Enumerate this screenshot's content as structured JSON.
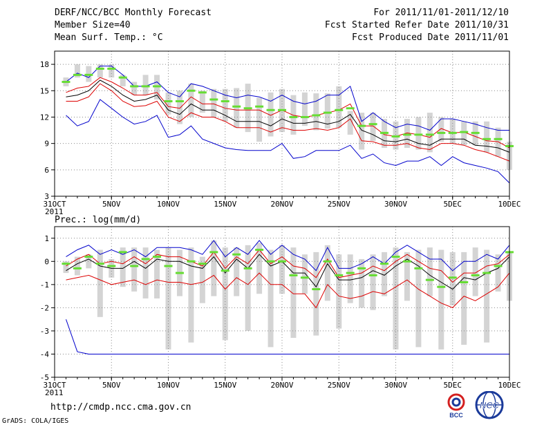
{
  "header": {
    "title": "DERF/NCC/BCC Monthly Forecast",
    "member_size": "Member Size=40",
    "variable": "Mean Surf. Temp.: °C",
    "period": "For 2011/11/01-2011/12/10",
    "start_date": "Fcst Started Refer Date 2011/10/31",
    "produced_date": "Fcst Produced Date 2011/11/01"
  },
  "footer": {
    "url": "http://cmdp.ncc.cma.gov.cn",
    "credit": "GrADS: COLA/IGES",
    "logo_bcc": "BCC",
    "logo_ncc": "NCC"
  },
  "colors": {
    "max": "#0000cc",
    "min": "#0000cc",
    "upper": "#dd0000",
    "lower": "#dd0000",
    "mean": "#000000",
    "obs": "#66dd33",
    "box": "#d4d4d4",
    "grid": "#888888"
  },
  "chart_data": [
    {
      "type": "line",
      "title": "Mean Surf. Temp.: °C",
      "x_tick_labels": [
        "31OCT",
        "5NOV",
        "10NOV",
        "15NOV",
        "20NOV",
        "25NOV",
        "30NOV",
        "5DEC",
        "10DEC"
      ],
      "x_tick_days": [
        0,
        5,
        10,
        15,
        20,
        25,
        30,
        35,
        40
      ],
      "x_year_label": "2011",
      "ylim": [
        3,
        19.5
      ],
      "y_ticks": [
        3,
        6,
        9,
        12,
        15,
        18
      ],
      "days": [
        1,
        2,
        3,
        4,
        5,
        6,
        7,
        8,
        9,
        10,
        11,
        12,
        13,
        14,
        15,
        16,
        17,
        18,
        19,
        20,
        21,
        22,
        23,
        24,
        25,
        26,
        27,
        28,
        29,
        30,
        31,
        32,
        33,
        34,
        35,
        36,
        37,
        38,
        39,
        40
      ],
      "series": [
        {
          "name": "ensemble max",
          "values": [
            16,
            17,
            16.5,
            17.8,
            17.8,
            16.8,
            15.5,
            15.5,
            16,
            14.8,
            14.3,
            15.8,
            15.5,
            15,
            14.5,
            14.2,
            14.5,
            14.3,
            13.8,
            14.5,
            13.8,
            13.5,
            13.8,
            14.5,
            14.5,
            15.5,
            11.5,
            12.5,
            11.5,
            10.8,
            11.2,
            11,
            10.5,
            11.8,
            11.8,
            11.5,
            11.2,
            10.8,
            10.5,
            10.5
          ]
        },
        {
          "name": "upper band",
          "values": [
            14.8,
            15.3,
            15.5,
            16.5,
            16,
            15.3,
            14.5,
            14.5,
            14.8,
            13.2,
            13,
            14.3,
            13.5,
            13.5,
            13,
            12.8,
            12.8,
            12.8,
            12.2,
            12.8,
            12.2,
            12,
            12.2,
            12.5,
            12.8,
            13.5,
            11,
            11,
            10,
            9.8,
            10.2,
            10,
            9.7,
            10.7,
            10.2,
            10.3,
            9.8,
            9.3,
            9.2,
            8.5
          ]
        },
        {
          "name": "ensemble mean",
          "values": [
            14.3,
            14.5,
            15,
            16.2,
            15.5,
            14.5,
            13.8,
            14,
            14.5,
            12.8,
            12.3,
            13.5,
            12.8,
            12.8,
            12.2,
            11.5,
            11.5,
            11.5,
            11,
            11.8,
            11.3,
            11.3,
            11.5,
            11.2,
            11.5,
            12.3,
            10.5,
            10,
            9.3,
            9.2,
            9.5,
            9,
            8.8,
            9.5,
            9.5,
            9.5,
            8.8,
            8.7,
            8.5,
            8
          ]
        },
        {
          "name": "lower band",
          "values": [
            13.8,
            13.8,
            14.3,
            15.8,
            15,
            13.8,
            13.2,
            13.3,
            13.8,
            12,
            11.5,
            12.5,
            12,
            12,
            11.5,
            10.8,
            10.8,
            10.8,
            10.3,
            10.8,
            10.5,
            10.5,
            10.7,
            10.5,
            10.8,
            11.8,
            9.3,
            9.2,
            8.8,
            8.8,
            9,
            8.5,
            8.3,
            9,
            9,
            8.8,
            8.3,
            8,
            7.5,
            7
          ]
        },
        {
          "name": "ensemble min",
          "values": [
            12.2,
            11,
            11.5,
            14,
            13,
            12,
            11.2,
            11.5,
            12.2,
            9.7,
            10,
            11,
            9.5,
            9,
            8.5,
            8.3,
            8.2,
            8.2,
            8.2,
            9,
            7.3,
            7.5,
            8.2,
            8.2,
            8.2,
            8.8,
            7.3,
            7.8,
            6.8,
            6.5,
            7,
            7,
            7.5,
            6.5,
            7.5,
            6.8,
            6.5,
            6.2,
            5.8,
            4.5
          ]
        }
      ],
      "observed": {
        "name": "observed (green)",
        "values": [
          16,
          16.8,
          16.8,
          17.5,
          17.5,
          16.5,
          15.5,
          15.5,
          15.5,
          13.8,
          13.8,
          15,
          14.8,
          14,
          13.8,
          13.2,
          13,
          13.2,
          12.8,
          12.8,
          12,
          12,
          12.2,
          12.5,
          12.8,
          13,
          11,
          11.2,
          10.2,
          9.8,
          10,
          10,
          10,
          10.2,
          10.2,
          10.3,
          10.2,
          9.5,
          9.5,
          8.7
        ]
      },
      "spread_boxes": {
        "name": "member spread",
        "low": [
          15.5,
          16.5,
          16,
          16.5,
          16.5,
          15.5,
          14.5,
          14.5,
          14,
          12.3,
          11.2,
          12,
          12.5,
          12,
          11.5,
          10.8,
          10.3,
          9.2,
          9.8,
          10.3,
          10,
          11,
          10.5,
          10.7,
          10.8,
          10,
          8.3,
          9.3,
          8.5,
          8.3,
          8.5,
          8.3,
          8,
          9.2,
          9,
          8.8,
          8.8,
          8,
          7.5,
          6
        ],
        "high": [
          16.5,
          18,
          17.8,
          18,
          18,
          16.8,
          16,
          16.8,
          16.8,
          14.8,
          15,
          15.8,
          15,
          15.2,
          15.2,
          15.3,
          15.8,
          14.2,
          14.8,
          15.2,
          14.5,
          14.8,
          14.7,
          14.7,
          15.5,
          12.7,
          12.5,
          12.5,
          11.8,
          11.5,
          11.8,
          12,
          12.5,
          12,
          11.8,
          11.5,
          11.5,
          11.5,
          10.8,
          9.2
        ]
      }
    },
    {
      "type": "line",
      "title": "Prec.: log(mm/d)",
      "x_tick_labels": [
        "31OCT",
        "5NOV",
        "10NOV",
        "15NOV",
        "20NOV",
        "25NOV",
        "30NOV",
        "5DEC",
        "10DEC"
      ],
      "x_tick_days": [
        0,
        5,
        10,
        15,
        20,
        25,
        30,
        35,
        40
      ],
      "x_year_label": "2011",
      "ylim": [
        -5,
        1.5
      ],
      "y_ticks": [
        -5,
        -4,
        -3,
        -2,
        -1,
        0,
        1
      ],
      "days": [
        1,
        2,
        3,
        4,
        5,
        6,
        7,
        8,
        9,
        10,
        11,
        12,
        13,
        14,
        15,
        16,
        17,
        18,
        19,
        20,
        21,
        22,
        23,
        24,
        25,
        26,
        27,
        28,
        29,
        30,
        31,
        32,
        33,
        34,
        35,
        36,
        37,
        38,
        39,
        40
      ],
      "series": [
        {
          "name": "ensemble max",
          "values": [
            0.2,
            0.5,
            0.7,
            0.3,
            0.5,
            0.3,
            0.5,
            0.2,
            0.6,
            0.6,
            0.6,
            0.5,
            0.3,
            0.9,
            0.2,
            0.6,
            0.3,
            0.9,
            0.3,
            0.7,
            0.3,
            0.1,
            -0.4,
            0.6,
            -0.3,
            -0.3,
            -0.1,
            0.2,
            -0.1,
            0.4,
            0.7,
            0.4,
            0.1,
            0.1,
            -0.4,
            0,
            0,
            0.3,
            0.1,
            0.7
          ]
        },
        {
          "name": "upper band",
          "values": [
            -0.2,
            0.1,
            0.3,
            -0.1,
            0,
            -0.1,
            0.2,
            -0.1,
            0.3,
            0.2,
            0.2,
            0,
            -0.2,
            0.4,
            -0.3,
            0.2,
            -0.1,
            0.5,
            -0.1,
            0.2,
            -0.2,
            -0.3,
            -0.7,
            0.1,
            -0.7,
            -0.6,
            -0.5,
            -0.2,
            -0.4,
            0,
            0.3,
            0,
            -0.3,
            -0.4,
            -0.9,
            -0.5,
            -0.5,
            -0.2,
            -0.1,
            0.3
          ]
        },
        {
          "name": "ensemble mean",
          "values": [
            -0.4,
            -0.1,
            0.1,
            -0.2,
            -0.3,
            -0.3,
            0,
            -0.3,
            0.1,
            0,
            0,
            -0.2,
            -0.3,
            0.2,
            -0.5,
            0.1,
            -0.3,
            0.3,
            -0.2,
            0,
            -0.5,
            -0.5,
            -1.1,
            -0.1,
            -0.8,
            -0.8,
            -0.7,
            -0.4,
            -0.6,
            -0.2,
            0.1,
            -0.2,
            -0.6,
            -0.9,
            -1.2,
            -0.7,
            -0.8,
            -0.5,
            -0.3,
            0.2
          ]
        },
        {
          "name": "lower band",
          "values": [
            -0.8,
            -0.7,
            -0.6,
            -0.8,
            -1,
            -0.9,
            -0.8,
            -1,
            -0.8,
            -0.9,
            -0.9,
            -1,
            -0.9,
            -0.6,
            -1.2,
            -0.7,
            -1,
            -0.5,
            -1,
            -1,
            -1.4,
            -1.4,
            -2,
            -1,
            -1.5,
            -1.6,
            -1.5,
            -1.3,
            -1.4,
            -1.1,
            -0.8,
            -1.2,
            -1.5,
            -1.8,
            -2,
            -1.5,
            -1.7,
            -1.4,
            -1.1,
            -0.5
          ]
        },
        {
          "name": "ensemble min",
          "values": [
            -2.5,
            -3.9,
            -4,
            -4,
            -4,
            -4,
            -4,
            -4,
            -4,
            -4,
            -4,
            -4,
            -4,
            -4,
            -4,
            -4,
            -4,
            -4,
            -4,
            -4,
            -4,
            -4,
            -4,
            -4,
            -4,
            -4,
            -4,
            -4,
            -4,
            -4,
            -4,
            -4,
            -4,
            -4,
            -4,
            -4,
            -4,
            -4,
            -4,
            -4
          ]
        }
      ],
      "observed": {
        "name": "observed (green)",
        "values": [
          -0.1,
          -0.3,
          0.2,
          -0.1,
          -0.2,
          0.4,
          -0.2,
          0.1,
          0.2,
          -0.2,
          -0.5,
          0,
          -0.1,
          0.4,
          -0.4,
          0.3,
          -0.3,
          0.5,
          0,
          0,
          -0.6,
          -0.7,
          -1.2,
          0,
          -0.6,
          -0.5,
          -0.3,
          -0.6,
          -0.1,
          0.2,
          0,
          -0.3,
          -0.8,
          -1.1,
          -0.7,
          -0.9,
          -0.6,
          -0.5,
          -0.2,
          0.4
        ]
      },
      "spread_boxes": {
        "name": "member spread",
        "low": [
          -0.5,
          -0.6,
          -0.3,
          -2.4,
          -0.7,
          -1.1,
          -1.3,
          -1.6,
          -1.6,
          -3.8,
          -1.5,
          -3.5,
          -1.8,
          -1.5,
          -3.4,
          -1.5,
          -3,
          -1.4,
          -3.7,
          -1.4,
          -3.3,
          -1.4,
          -3.2,
          -1.7,
          -2.9,
          -1.8,
          -2,
          -2.1,
          -1.5,
          -3.8,
          -1.7,
          -3.7,
          -1.5,
          -3.8,
          -1.9,
          -3.6,
          -1.5,
          -3.5,
          -1.3,
          -1.7
        ],
        "high": [
          0,
          0.2,
          0.3,
          0.5,
          0.1,
          0.6,
          0.6,
          0.6,
          0.5,
          0.6,
          0.5,
          0.6,
          0.2,
          0.9,
          0.6,
          0.6,
          0.7,
          0.8,
          0.5,
          0.7,
          0.6,
          0.3,
          0.4,
          0.7,
          0.3,
          0.3,
          0.1,
          0.3,
          0.4,
          0.6,
          0.4,
          0.5,
          0.6,
          0.5,
          0.4,
          0.4,
          0.6,
          0.5,
          0.3,
          0.4
        ]
      }
    }
  ]
}
